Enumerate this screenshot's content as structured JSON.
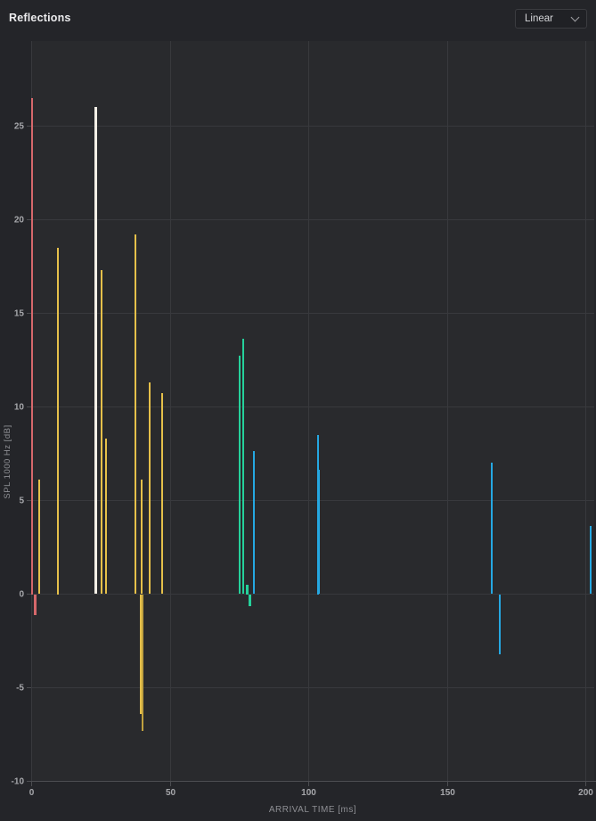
{
  "header": {
    "title": "Reflections",
    "scale_selected": "Linear"
  },
  "chart_data": {
    "type": "stem",
    "title": "Reflections",
    "xlabel": "ARRIVAL TIME [ms]",
    "ylabel": "SPL 1000 Hz [dB]",
    "xlim": [
      0,
      203
    ],
    "ylim": [
      -10,
      29.5
    ],
    "x_ticks": [
      0,
      50,
      100,
      150,
      200
    ],
    "y_ticks": [
      -10,
      -5,
      0,
      5,
      10,
      15,
      20,
      25
    ],
    "grid": true,
    "legend": false,
    "series": [
      {
        "name": "red",
        "color": "#d5686b",
        "points": [
          {
            "t": 0.3,
            "db": 26.5,
            "w": 2
          },
          {
            "t": 1.3,
            "db": -1.1,
            "w": 3
          }
        ]
      },
      {
        "name": "yellow",
        "color": "#e5c04a",
        "points": [
          {
            "t": 2.9,
            "db": 6.1
          },
          {
            "t": 9.6,
            "db": 18.5
          },
          {
            "t": 25.4,
            "db": 17.3
          },
          {
            "t": 27.0,
            "db": 8.3
          },
          {
            "t": 37.6,
            "db": 19.2
          },
          {
            "t": 39.6,
            "db": -6.4
          },
          {
            "t": 40.0,
            "db": 6.1
          },
          {
            "t": 40.3,
            "db": -7.3,
            "color": "#bfa03f"
          },
          {
            "t": 42.8,
            "db": 11.3
          },
          {
            "t": 47.3,
            "db": 10.7
          }
        ]
      },
      {
        "name": "white",
        "color": "#f3efe6",
        "points": [
          {
            "t": 23.2,
            "db": 26.0,
            "w": 3
          }
        ]
      },
      {
        "name": "green",
        "color": "#25d19b",
        "points": [
          {
            "t": 75.2,
            "db": 12.7
          },
          {
            "t": 76.5,
            "db": 13.6
          },
          {
            "t": 77.9,
            "db": 0.5,
            "w": 3
          },
          {
            "t": 78.8,
            "db": -0.6,
            "w": 3
          }
        ]
      },
      {
        "name": "blue",
        "color": "#25a8e2",
        "points": [
          {
            "t": 80.5,
            "db": 7.6
          },
          {
            "t": 103.4,
            "db": 8.5
          },
          {
            "t": 103.9,
            "db": 6.6
          },
          {
            "t": 166.2,
            "db": 7.0
          },
          {
            "t": 169.0,
            "db": -3.2
          },
          {
            "t": 201.9,
            "db": 3.6
          }
        ]
      }
    ]
  }
}
